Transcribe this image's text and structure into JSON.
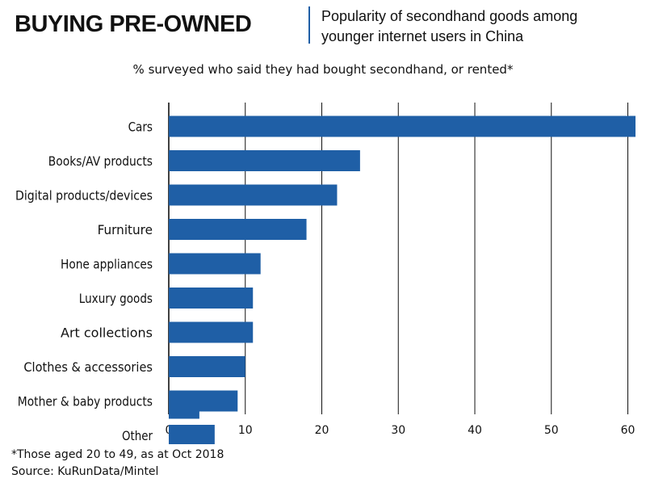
{
  "header": {
    "headline": "BUYING PRE-OWNED",
    "subtitle_line1": "Popularity of secondhand goods among",
    "subtitle_line2": "younger internet users in China"
  },
  "caption": "% surveyed who said they had bought secondhand, or rented*",
  "footnote": {
    "line1": "*Those aged 20 to 49, as at Oct 2018",
    "line2": "Source: KuRunData/Mintel"
  },
  "colors": {
    "bar": "#1f5fa6",
    "grid": "#111111",
    "text": "#111111"
  },
  "chart_data": {
    "type": "bar",
    "orientation": "horizontal",
    "title": "BUYING PRE-OWNED",
    "categories": [
      "Cars",
      "Books/AV products",
      "Digital products/devices",
      "Furniture",
      "Hone appliances",
      "Luxury goods",
      "Art collections",
      "Clothes & accessories",
      "Mother & baby products",
      "Other"
    ],
    "values": [
      61,
      25,
      22,
      18,
      12,
      11,
      11,
      10,
      9,
      6
    ],
    "extra_marks": [
      {
        "category": "Mother & baby products",
        "value": 4
      }
    ],
    "xlabel": "",
    "ylabel": "",
    "xlim": [
      0,
      61
    ],
    "xticks": [
      0,
      10,
      20,
      30,
      40,
      50,
      60
    ],
    "grid": true,
    "legend": "none"
  }
}
